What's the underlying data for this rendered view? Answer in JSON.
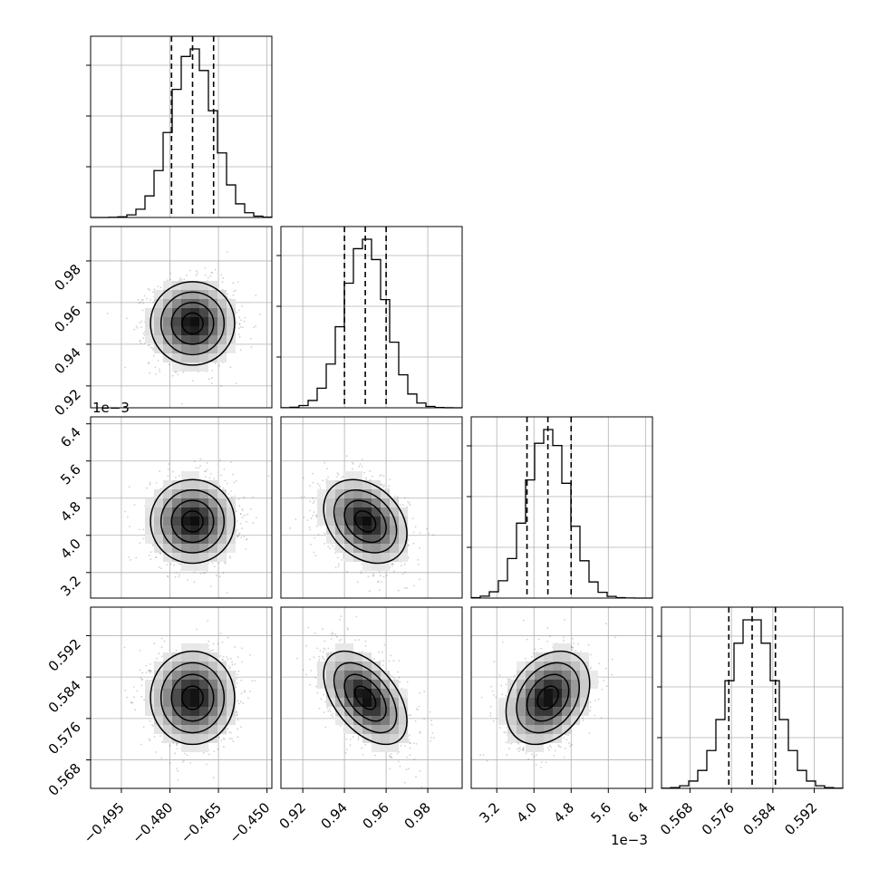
{
  "chart_data": {
    "type": "corner",
    "description_free": true,
    "parameters": [
      {
        "range": [
          -0.5045,
          -0.4485
        ],
        "ticks": [
          -0.495,
          -0.48,
          -0.465,
          -0.45
        ],
        "tick_labels": [
          "−0.495",
          "−0.480",
          "−0.465",
          "−0.450"
        ],
        "quantiles": [
          -0.4795,
          -0.473,
          -0.4665
        ],
        "median": -0.473,
        "sigma": 0.0065,
        "offset_text": ""
      },
      {
        "range": [
          0.9095,
          0.9965
        ],
        "ticks": [
          0.92,
          0.94,
          0.96,
          0.98
        ],
        "tick_labels": [
          "0.92",
          "0.94",
          "0.96",
          "0.98"
        ],
        "quantiles": [
          0.94,
          0.95,
          0.96
        ],
        "median": 0.95,
        "sigma": 0.01,
        "offset_text": ""
      },
      {
        "range": [
          2.65,
          6.55
        ],
        "ticks": [
          3.2,
          4.0,
          4.8,
          5.6,
          6.4
        ],
        "tick_labels": [
          "3.2",
          "4.0",
          "4.8",
          "5.6",
          "6.4"
        ],
        "quantiles": [
          3.85,
          4.3,
          4.8
        ],
        "median": 4.3,
        "sigma": 0.45,
        "offset_text": "1e−3"
      },
      {
        "range": [
          0.5625,
          0.5975
        ],
        "ticks": [
          0.568,
          0.576,
          0.584,
          0.592
        ],
        "tick_labels": [
          "0.568",
          "0.576",
          "0.584",
          "0.592"
        ],
        "quantiles": [
          0.5755,
          0.58,
          0.5845
        ],
        "median": 0.58,
        "sigma": 0.0045,
        "offset_text": ""
      }
    ],
    "correlations": {
      "1-0": 0.0,
      "2-0": 0.0,
      "2-1": -0.3,
      "3-0": 0.0,
      "3-1": -0.5,
      "3-2": 0.3
    },
    "grid": true,
    "title": "",
    "legend": "none",
    "colors": {
      "line": "#000000",
      "grid": "#b0b0b0",
      "points": "#555555"
    }
  }
}
